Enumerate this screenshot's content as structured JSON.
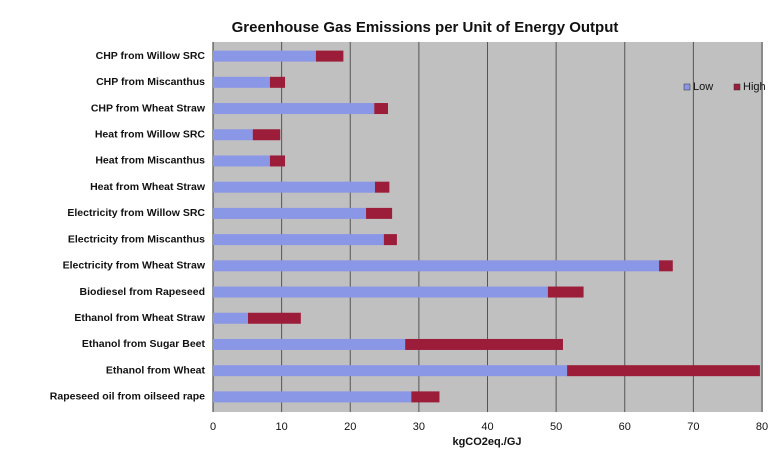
{
  "chart_data": {
    "type": "stacked-barh",
    "title": "Greenhouse Gas Emissions per Unit of Energy Output",
    "x_label": "kgCO2eq./GJ",
    "categories": [
      "CHP from Willow SRC",
      "CHP from Miscanthus",
      "CHP from Wheat Straw",
      "Heat from Willow SRC",
      "Heat from Miscanthus",
      "Heat from Wheat Straw",
      "Electricity from Willow SRC",
      "Electricity from Miscanthus",
      "Electricity from Wheat Straw",
      "Biodiesel from Rapeseed",
      "Ethanol from Wheat Straw",
      "Ethanol from Sugar Beet",
      "Ethanol from Wheat",
      "Rapeseed oil from oilseed rape"
    ],
    "series": [
      {
        "name": "Low",
        "color": "#8a96e6",
        "values": [
          15,
          8.3,
          23.5,
          5.8,
          8.3,
          23.6,
          22.3,
          24.9,
          65,
          48.8,
          5.1,
          28,
          51.6,
          28.9
        ]
      },
      {
        "name": "High",
        "color": "#9b1d3a",
        "values": [
          4,
          2.2,
          2,
          4,
          2.2,
          2.1,
          3.8,
          1.9,
          2,
          5.2,
          7.7,
          23,
          28.1,
          4.1
        ]
      }
    ],
    "xlim": [
      0,
      80
    ],
    "xticks": [
      0,
      10,
      20,
      30,
      40,
      50,
      60,
      70,
      80
    ],
    "grid": true,
    "legend": "top-right"
  }
}
